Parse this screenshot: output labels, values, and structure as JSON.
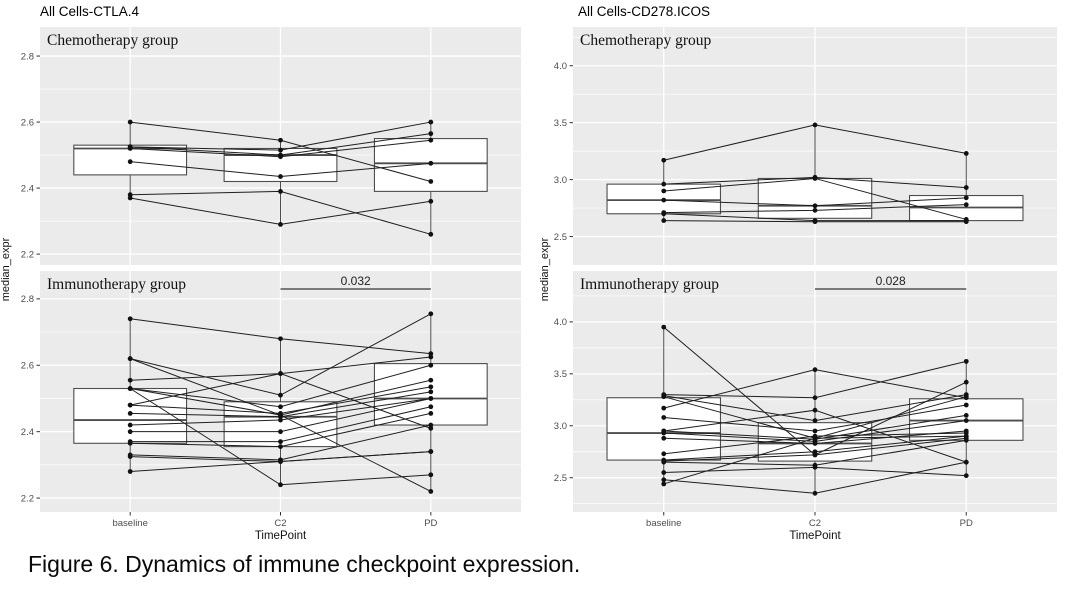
{
  "caption": "Figure 6. Dynamics of immune checkpoint expression.",
  "colors": {
    "panel_bg": "#ebebeb",
    "grid": "#ffffff",
    "box_stroke": "#4d4d4d",
    "box_fill": "#ffffff",
    "line": "#1f1f1f",
    "point": "#111111",
    "tick_text": "#4d4d4d",
    "tick_mark": "#333333",
    "pvalue_line": "#555555",
    "pvalue_text": "#222222",
    "facet_label": "#111111",
    "axis_title": "#111111"
  },
  "chart_data": [
    {
      "type": "line",
      "subtype": "paired-boxplot-spaghetti",
      "title": "All Cells-CTLA.4",
      "xlabel": "TimePoint",
      "ylabel": "median_expr",
      "categories": [
        "baseline",
        "C2",
        "PD"
      ],
      "facets": [
        {
          "label": "Chemotherapy group",
          "ylim": [
            2.167,
            2.888
          ],
          "yticks": [
            2.2,
            2.4,
            2.6,
            2.8
          ],
          "minor_ticks": [
            2.3,
            2.5,
            2.7
          ],
          "pvalue": null,
          "boxes": [
            {
              "category": "baseline",
              "q1": 2.44,
              "median": 2.52,
              "q3": 2.53
            },
            {
              "category": "C2",
              "q1": 2.42,
              "median": 2.5,
              "q3": 2.52
            },
            {
              "category": "PD",
              "q1": 2.39,
              "median": 2.475,
              "q3": 2.55
            }
          ],
          "subjects": [
            [
              2.6,
              2.545,
              2.42
            ],
            [
              2.525,
              2.515,
              2.6
            ],
            [
              2.525,
              2.5,
              2.565
            ],
            [
              2.52,
              2.495,
              2.545
            ],
            [
              2.48,
              2.435,
              2.475
            ],
            [
              2.38,
              2.39,
              2.26
            ],
            [
              2.37,
              2.29,
              2.36
            ]
          ]
        },
        {
          "label": "Immunotherapy group",
          "ylim": [
            2.158,
            2.884
          ],
          "yticks": [
            2.2,
            2.4,
            2.6,
            2.8
          ],
          "minor_ticks": [
            2.3,
            2.5,
            2.7
          ],
          "pvalue": "0.032",
          "boxes": [
            {
              "category": "baseline",
              "q1": 2.365,
              "median": 2.435,
              "q3": 2.53
            },
            {
              "category": "C2",
              "q1": 2.355,
              "median": 2.445,
              "q3": 2.49
            },
            {
              "category": "PD",
              "q1": 2.42,
              "median": 2.5,
              "q3": 2.605
            }
          ],
          "subjects": [
            [
              2.74,
              2.68,
              2.635
            ],
            [
              2.62,
              2.51,
              2.755
            ],
            [
              2.62,
              2.45,
              2.22
            ],
            [
              2.555,
              2.575,
              2.625
            ],
            [
              2.53,
              2.475,
              2.6
            ],
            [
              2.53,
              2.45,
              2.555
            ],
            [
              2.53,
              2.24,
              2.27
            ],
            [
              2.48,
              2.455,
              2.535
            ],
            [
              2.48,
              2.575,
              2.41
            ],
            [
              2.455,
              2.445,
              2.52
            ],
            [
              2.42,
              2.435,
              2.5
            ],
            [
              2.4,
              2.4,
              2.5
            ],
            [
              2.37,
              2.37,
              2.475
            ],
            [
              2.365,
              2.355,
              2.455
            ],
            [
              2.33,
              2.315,
              2.42
            ],
            [
              2.325,
              2.31,
              2.34
            ],
            [
              2.28,
              2.31,
              2.34
            ]
          ]
        }
      ]
    },
    {
      "type": "line",
      "subtype": "paired-boxplot-spaghetti",
      "title": "All Cells-CD278.ICOS",
      "xlabel": "TimePoint",
      "ylabel": "median_expr",
      "categories": [
        "baseline",
        "C2",
        "PD"
      ],
      "facets": [
        {
          "label": "Chemotherapy group",
          "ylim": [
            2.25,
            4.34
          ],
          "yticks": [
            2.5,
            3.0,
            3.5,
            4.0
          ],
          "minor_ticks": [
            2.75,
            3.25,
            3.75,
            4.25
          ],
          "pvalue": null,
          "boxes": [
            {
              "category": "baseline",
              "q1": 2.7,
              "median": 2.82,
              "q3": 2.96
            },
            {
              "category": "C2",
              "q1": 2.66,
              "median": 2.77,
              "q3": 3.01
            },
            {
              "category": "PD",
              "q1": 2.64,
              "median": 2.755,
              "q3": 2.86
            }
          ],
          "subjects": [
            [
              3.17,
              3.48,
              3.23
            ],
            [
              2.96,
              3.02,
              2.93
            ],
            [
              2.9,
              3.01,
              2.65
            ],
            [
              2.82,
              2.77,
              2.84
            ],
            [
              2.71,
              2.73,
              2.78
            ],
            [
              2.7,
              2.64,
              2.64
            ],
            [
              2.64,
              2.63,
              2.63
            ]
          ]
        },
        {
          "label": "Immunotherapy group",
          "ylim": [
            2.17,
            4.49
          ],
          "yticks": [
            2.5,
            3.0,
            3.5,
            4.0
          ],
          "minor_ticks": [
            2.25,
            2.75,
            3.25,
            3.75,
            4.25
          ],
          "pvalue": "0.028",
          "boxes": [
            {
              "category": "baseline",
              "q1": 2.67,
              "median": 2.93,
              "q3": 3.27
            },
            {
              "category": "C2",
              "q1": 2.66,
              "median": 2.83,
              "q3": 3.03
            },
            {
              "category": "PD",
              "q1": 2.86,
              "median": 3.05,
              "q3": 3.26
            }
          ],
          "subjects": [
            [
              3.95,
              2.72,
              3.42
            ],
            [
              3.3,
              3.27,
              3.62
            ],
            [
              3.29,
              3.05,
              3.3
            ],
            [
              3.28,
              2.88,
              3.28
            ],
            [
              3.17,
              3.54,
              3.27
            ],
            [
              3.08,
              2.95,
              3.2
            ],
            [
              2.95,
              3.15,
              2.65
            ],
            [
              2.95,
              2.87,
              3.1
            ],
            [
              2.93,
              2.85,
              3.05
            ],
            [
              2.88,
              2.83,
              2.95
            ],
            [
              2.73,
              2.9,
              2.93
            ],
            [
              2.67,
              2.75,
              2.9
            ],
            [
              2.66,
              2.72,
              2.88
            ],
            [
              2.65,
              2.62,
              2.86
            ],
            [
              2.55,
              2.6,
              2.52
            ],
            [
              2.48,
              2.35,
              2.65
            ],
            [
              2.44,
              2.88,
              2.9
            ]
          ]
        }
      ]
    }
  ]
}
